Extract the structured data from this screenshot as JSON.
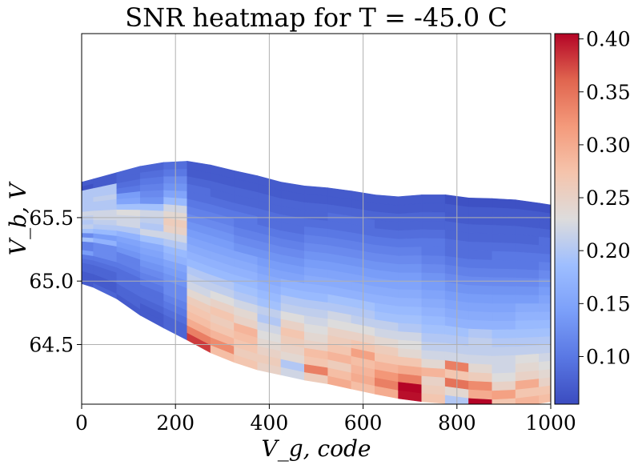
{
  "chart_data": {
    "type": "heatmap",
    "title": "SNR heatmap for T = -45.0 C",
    "xlabel": "V_g, code",
    "ylabel": "V_b, V",
    "xlim": [
      0,
      1000
    ],
    "ylim": [
      64.03,
      66.95
    ],
    "x_ticks": [
      "0",
      "200",
      "400",
      "600",
      "800",
      "1000"
    ],
    "x_tick_values": [
      0,
      200,
      400,
      600,
      800,
      1000
    ],
    "y_ticks": [
      "64.5",
      "65.0",
      "65.5"
    ],
    "y_tick_values": [
      64.5,
      65.0,
      65.5
    ],
    "colorbar": {
      "min": 0.055,
      "max": 0.405,
      "ticks": [
        "0.10",
        "0.15",
        "0.20",
        "0.25",
        "0.30",
        "0.35",
        "0.40"
      ],
      "tick_values": [
        0.1,
        0.15,
        0.2,
        0.25,
        0.3,
        0.35,
        0.4
      ],
      "colormap": "coolwarm"
    },
    "grid": true,
    "x": [
      0,
      50,
      100,
      150,
      200,
      250,
      300,
      350,
      400,
      450,
      500,
      550,
      600,
      650,
      700,
      750,
      800,
      850,
      900,
      950,
      1000
    ],
    "rows_count": 24,
    "top_boundary_V": [
      65.78,
      65.83,
      65.88,
      65.93,
      65.94,
      65.95,
      65.88,
      65.86,
      65.8,
      65.76,
      65.74,
      65.73,
      65.69,
      65.67,
      65.66,
      65.7,
      65.66,
      65.65,
      65.65,
      65.63,
      65.6
    ],
    "bottom_boundary_V": [
      64.98,
      64.92,
      64.8,
      64.66,
      64.6,
      64.47,
      64.4,
      64.32,
      64.28,
      64.24,
      64.2,
      64.18,
      64.12,
      64.1,
      64.05,
      64.05,
      64.02,
      64.0,
      64.0,
      64.02,
      64.05
    ],
    "snr_values": [
      [
        0.07,
        0.07,
        0.07,
        0.08,
        0.08,
        0.09,
        0.1,
        0.14,
        0.11,
        0.11,
        0.19,
        0.12,
        0.19,
        0.21,
        0.2,
        0.21,
        0.22,
        0.2,
        0.2,
        0.2,
        0.2,
        0.2,
        0.06,
        0.07
      ],
      [
        0.08,
        0.07,
        0.07,
        0.08,
        0.08,
        0.09,
        0.1,
        0.12,
        0.12,
        0.12,
        0.17,
        0.14,
        0.18,
        0.2,
        0.21,
        0.22,
        0.22,
        0.2,
        0.2,
        0.21,
        0.2,
        0.2,
        0.07,
        0.07
      ],
      [
        0.07,
        0.08,
        0.08,
        0.09,
        0.09,
        0.09,
        0.1,
        0.11,
        0.11,
        0.13,
        0.14,
        0.15,
        0.17,
        0.2,
        0.22,
        0.22,
        0.23,
        0.19,
        0.15,
        0.14,
        0.1,
        0.09,
        0.08,
        0.08
      ],
      [
        0.07,
        0.07,
        0.08,
        0.09,
        0.09,
        0.1,
        0.11,
        0.12,
        0.13,
        0.14,
        0.15,
        0.16,
        0.19,
        0.22,
        0.2,
        0.21,
        0.22,
        0.19,
        0.13,
        0.12,
        0.11,
        0.1,
        0.09,
        0.08
      ],
      [
        0.08,
        0.08,
        0.09,
        0.1,
        0.11,
        0.12,
        0.12,
        0.13,
        0.14,
        0.15,
        0.17,
        0.18,
        0.2,
        0.22,
        0.25,
        0.26,
        0.24,
        0.22,
        0.18,
        0.15,
        0.13,
        0.12,
        0.1,
        0.09
      ],
      [
        0.38,
        0.34,
        0.3,
        0.28,
        0.27,
        0.26,
        0.24,
        0.22,
        0.21,
        0.2,
        0.18,
        0.17,
        0.16,
        0.15,
        0.14,
        0.13,
        0.12,
        0.11,
        0.1,
        0.09,
        0.09,
        0.08,
        0.07,
        0.07
      ],
      [
        0.28,
        0.33,
        0.29,
        0.27,
        0.26,
        0.27,
        0.25,
        0.23,
        0.21,
        0.2,
        0.18,
        0.17,
        0.16,
        0.15,
        0.14,
        0.13,
        0.12,
        0.11,
        0.1,
        0.09,
        0.08,
        0.08,
        0.07,
        0.07
      ],
      [
        0.27,
        0.26,
        0.27,
        0.28,
        0.29,
        0.25,
        0.24,
        0.22,
        0.2,
        0.19,
        0.18,
        0.17,
        0.16,
        0.15,
        0.13,
        0.12,
        0.11,
        0.1,
        0.1,
        0.09,
        0.08,
        0.08,
        0.07,
        0.07
      ],
      [
        0.25,
        0.26,
        0.25,
        0.24,
        0.23,
        0.22,
        0.2,
        0.21,
        0.19,
        0.18,
        0.17,
        0.16,
        0.15,
        0.14,
        0.13,
        0.12,
        0.11,
        0.1,
        0.09,
        0.09,
        0.08,
        0.08,
        0.07,
        0.07
      ],
      [
        0.22,
        0.2,
        0.24,
        0.25,
        0.26,
        0.27,
        0.25,
        0.23,
        0.21,
        0.2,
        0.18,
        0.17,
        0.15,
        0.14,
        0.13,
        0.12,
        0.11,
        0.1,
        0.09,
        0.09,
        0.08,
        0.08,
        0.07,
        0.07
      ],
      [
        0.26,
        0.34,
        0.27,
        0.28,
        0.25,
        0.24,
        0.23,
        0.22,
        0.21,
        0.2,
        0.18,
        0.17,
        0.16,
        0.15,
        0.14,
        0.13,
        0.12,
        0.11,
        0.1,
        0.09,
        0.08,
        0.08,
        0.07,
        0.07
      ],
      [
        0.3,
        0.28,
        0.26,
        0.29,
        0.27,
        0.26,
        0.25,
        0.23,
        0.22,
        0.2,
        0.19,
        0.17,
        0.16,
        0.15,
        0.14,
        0.13,
        0.12,
        0.11,
        0.1,
        0.09,
        0.09,
        0.08,
        0.07,
        0.07
      ],
      [
        0.28,
        0.3,
        0.29,
        0.28,
        0.31,
        0.27,
        0.25,
        0.23,
        0.21,
        0.2,
        0.19,
        0.17,
        0.16,
        0.15,
        0.14,
        0.13,
        0.12,
        0.11,
        0.1,
        0.09,
        0.09,
        0.08,
        0.07,
        0.07
      ],
      [
        0.3,
        0.34,
        0.32,
        0.29,
        0.27,
        0.26,
        0.24,
        0.22,
        0.21,
        0.19,
        0.18,
        0.17,
        0.16,
        0.15,
        0.14,
        0.13,
        0.12,
        0.11,
        0.1,
        0.09,
        0.08,
        0.08,
        0.07,
        0.07
      ],
      [
        0.4,
        0.41,
        0.34,
        0.3,
        0.27,
        0.24,
        0.23,
        0.22,
        0.2,
        0.19,
        0.18,
        0.17,
        0.16,
        0.15,
        0.14,
        0.13,
        0.12,
        0.11,
        0.1,
        0.09,
        0.08,
        0.08,
        0.07,
        0.07
      ],
      [
        0.27,
        0.26,
        0.25,
        0.29,
        0.24,
        0.22,
        0.21,
        0.2,
        0.19,
        0.18,
        0.17,
        0.16,
        0.15,
        0.14,
        0.13,
        0.12,
        0.11,
        0.1,
        0.1,
        0.09,
        0.08,
        0.08,
        0.07,
        0.07
      ],
      [
        0.2,
        0.24,
        0.35,
        0.27,
        0.34,
        0.22,
        0.21,
        0.2,
        0.19,
        0.17,
        0.16,
        0.15,
        0.14,
        0.13,
        0.12,
        0.11,
        0.1,
        0.09,
        0.09,
        0.08,
        0.08,
        0.07,
        0.07,
        0.06
      ],
      [
        0.41,
        0.3,
        0.33,
        0.26,
        0.24,
        0.22,
        0.21,
        0.21,
        0.2,
        0.17,
        0.16,
        0.15,
        0.14,
        0.13,
        0.12,
        0.11,
        0.1,
        0.09,
        0.09,
        0.08,
        0.08,
        0.07,
        0.07,
        0.06
      ],
      [
        0.27,
        0.31,
        0.25,
        0.23,
        0.22,
        0.22,
        0.21,
        0.2,
        0.19,
        0.17,
        0.16,
        0.15,
        0.14,
        0.13,
        0.12,
        0.11,
        0.1,
        0.1,
        0.09,
        0.08,
        0.08,
        0.07,
        0.07,
        0.06
      ],
      [
        0.29,
        0.27,
        0.3,
        0.25,
        0.24,
        0.23,
        0.21,
        0.2,
        0.19,
        0.18,
        0.17,
        0.16,
        0.14,
        0.13,
        0.12,
        0.11,
        0.1,
        0.1,
        0.09,
        0.08,
        0.08,
        0.07,
        0.07,
        0.06
      ],
      [
        0.28,
        0.27,
        0.25,
        0.24,
        0.23,
        0.22,
        0.21,
        0.2,
        0.19,
        0.18,
        0.17,
        0.16,
        0.15,
        0.14,
        0.13,
        0.12,
        0.11,
        0.1,
        0.09,
        0.09,
        0.08,
        0.07,
        0.07,
        0.06
      ]
    ]
  }
}
